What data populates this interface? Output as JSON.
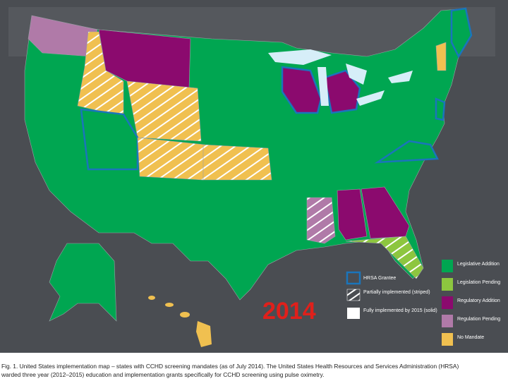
{
  "map": {
    "year": "2014",
    "legend_status": [
      {
        "label": "Legislative Addition",
        "color": "#00a651"
      },
      {
        "label": "Legislation Pending",
        "color": "#8dc63f"
      },
      {
        "label": "Regulatory Addition",
        "color": "#8b0a6e"
      },
      {
        "label": "Regulation Pending",
        "color": "#b07aa8"
      },
      {
        "label": "No Mandate",
        "color": "#f0c050"
      }
    ],
    "legend_implementation": [
      {
        "label": "HRSA Grantee"
      },
      {
        "label": "Partially implemented (striped)"
      },
      {
        "label": "Fully implemented by 2015 (solid)"
      }
    ]
  },
  "caption": {
    "lines": [
      "Fig. 1. United States implementation map – states with CCHD screening mandates (as of July 2014). The United States Health Resources and Services Administration (HRSA)",
      "warded three year (2012–2015) education and implementation grants specifically for CCHD screening using pulse oximetry."
    ]
  }
}
